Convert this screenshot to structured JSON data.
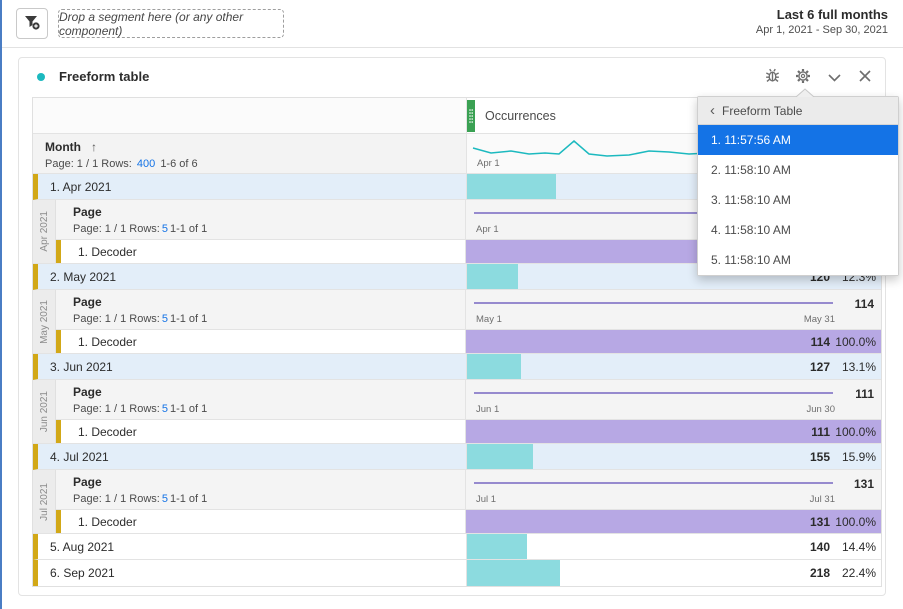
{
  "topbar": {
    "dropzone_label": "Drop a segment here (or any other component)",
    "date_range_title": "Last 6 full months",
    "date_range_detail": "Apr 1, 2021 - Sep 30, 2021"
  },
  "panel": {
    "title": "Freeform table"
  },
  "table": {
    "metric_header": "Occurrences",
    "dimension_header": "Month",
    "sort_icon": "↑",
    "pagination": {
      "prefix": "Page: 1 / 1 Rows:",
      "rows": "400",
      "range": "1-6 of 6"
    },
    "overview_spark_label": "Apr 1",
    "rows": [
      {
        "label": "1. Apr 2021",
        "selected": true,
        "bar_pct": 21.5,
        "value": "",
        "percent": "",
        "breakdown": {
          "side_label": "Apr 2021",
          "title": "Page",
          "pagination": {
            "prefix": "Page: 1 / 1 Rows:",
            "rows": "5",
            "range": "1-1 of 1"
          },
          "spark": {
            "start_label": "Apr 1",
            "end_label": "",
            "total": ""
          },
          "child": {
            "label": "1. Decoder",
            "bar_pct": 100,
            "value": "",
            "percent": ""
          }
        }
      },
      {
        "label": "2. May 2021",
        "selected": true,
        "bar_pct": 12.3,
        "value": "120",
        "percent": "12.3%",
        "breakdown": {
          "side_label": "May 2021",
          "title": "Page",
          "pagination": {
            "prefix": "Page: 1 / 1 Rows:",
            "rows": "5",
            "range": "1-1 of 1"
          },
          "spark": {
            "start_label": "May 1",
            "end_label": "May 31",
            "total": "114"
          },
          "child": {
            "label": "1. Decoder",
            "bar_pct": 100,
            "value": "114",
            "percent": "100.0%"
          }
        }
      },
      {
        "label": "3. Jun 2021",
        "selected": true,
        "bar_pct": 13.1,
        "value": "127",
        "percent": "13.1%",
        "breakdown": {
          "side_label": "Jun 2021",
          "title": "Page",
          "pagination": {
            "prefix": "Page: 1 / 1 Rows:",
            "rows": "5",
            "range": "1-1 of 1"
          },
          "spark": {
            "start_label": "Jun 1",
            "end_label": "Jun 30",
            "total": "111"
          },
          "child": {
            "label": "1. Decoder",
            "bar_pct": 100,
            "value": "111",
            "percent": "100.0%"
          }
        }
      },
      {
        "label": "4. Jul 2021",
        "selected": true,
        "bar_pct": 15.9,
        "value": "155",
        "percent": "15.9%",
        "breakdown": {
          "side_label": "Jul 2021",
          "title": "Page",
          "pagination": {
            "prefix": "Page: 1 / 1 Rows:",
            "rows": "5",
            "range": "1-1 of 1"
          },
          "spark": {
            "start_label": "Jul 1",
            "end_label": "Jul 31",
            "total": "131"
          },
          "child": {
            "label": "1. Decoder",
            "bar_pct": 100,
            "value": "131",
            "percent": "100.0%"
          }
        }
      },
      {
        "label": "5. Aug 2021",
        "selected": false,
        "bar_pct": 14.4,
        "value": "140",
        "percent": "14.4%"
      },
      {
        "label": "6. Sep 2021",
        "selected": false,
        "bar_pct": 22.4,
        "value": "218",
        "percent": "22.4%"
      }
    ]
  },
  "dropdown": {
    "header": "Freeform Table",
    "back_icon": "‹",
    "items": [
      "1. 11:57:56 AM",
      "2. 11:58:10 AM",
      "3. 11:58:10 AM",
      "4. 11:58:10 AM",
      "5. 11:58:10 AM"
    ],
    "selected_index": 0
  },
  "colors": {
    "accent": "#1CB9BF",
    "bar_teal": "#8CDBDF",
    "row_blue": "#E3EEF9",
    "bar_purple": "#B7A8E4",
    "line_purple": "#7667C2",
    "gold": "#D2A817",
    "link": "#1473E6",
    "blue": "#1473E6",
    "green": "#3AA153",
    "icon": "#6E6E6E"
  }
}
